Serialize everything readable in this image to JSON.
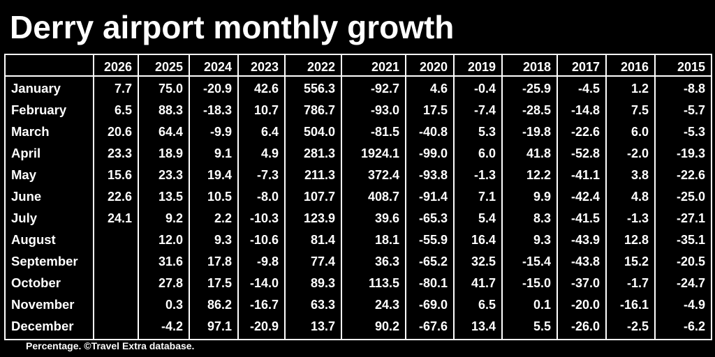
{
  "title": "Derry airport monthly growth",
  "footnote": "Percentage. ©Travel Extra database.",
  "colors": {
    "background": "#000000",
    "text": "#ffffff",
    "grid": "#ffffff"
  },
  "chart_data": {
    "type": "table",
    "title": "Derry airport monthly growth",
    "columns": [
      "2026",
      "2025",
      "2024",
      "2023",
      "2022",
      "2021",
      "2020",
      "2019",
      "2018",
      "2017",
      "2016",
      "2015"
    ],
    "rows": [
      {
        "label": "January",
        "values": [
          "7.7",
          "75.0",
          "-20.9",
          "42.6",
          "556.3",
          "-92.7",
          "4.6",
          "-0.4",
          "-25.9",
          "-4.5",
          "1.2",
          "-8.8"
        ]
      },
      {
        "label": "February",
        "values": [
          "6.5",
          "88.3",
          "-18.3",
          "10.7",
          "786.7",
          "-93.0",
          "17.5",
          "-7.4",
          "-28.5",
          "-14.8",
          "7.5",
          "-5.7"
        ]
      },
      {
        "label": "March",
        "values": [
          "20.6",
          "64.4",
          "-9.9",
          "6.4",
          "504.0",
          "-81.5",
          "-40.8",
          "5.3",
          "-19.8",
          "-22.6",
          "6.0",
          "-5.3"
        ]
      },
      {
        "label": "April",
        "values": [
          "23.3",
          "18.9",
          "9.1",
          "4.9",
          "281.3",
          "1924.1",
          "-99.0",
          "6.0",
          "41.8",
          "-52.8",
          "-2.0",
          "-19.3"
        ]
      },
      {
        "label": "May",
        "values": [
          "15.6",
          "23.3",
          "19.4",
          "-7.3",
          "211.3",
          "372.4",
          "-93.8",
          "-1.3",
          "12.2",
          "-41.1",
          "3.8",
          "-22.6"
        ]
      },
      {
        "label": "June",
        "values": [
          "22.6",
          "13.5",
          "10.5",
          "-8.0",
          "107.7",
          "408.7",
          "-91.4",
          "7.1",
          "9.9",
          "-42.4",
          "4.8",
          "-25.0"
        ]
      },
      {
        "label": "July",
        "values": [
          "24.1",
          "9.2",
          "2.2",
          "-10.3",
          "123.9",
          "39.6",
          "-65.3",
          "5.4",
          "8.3",
          "-41.5",
          "-1.3",
          "-27.1"
        ]
      },
      {
        "label": "August",
        "values": [
          "",
          "12.0",
          "9.3",
          "-10.6",
          "81.4",
          "18.1",
          "-55.9",
          "16.4",
          "9.3",
          "-43.9",
          "12.8",
          "-35.1"
        ]
      },
      {
        "label": "September",
        "values": [
          "",
          "31.6",
          "17.8",
          "-9.8",
          "77.4",
          "36.3",
          "-65.2",
          "32.5",
          "-15.4",
          "-43.8",
          "15.2",
          "-20.5"
        ]
      },
      {
        "label": "October",
        "values": [
          "",
          "27.8",
          "17.5",
          "-14.0",
          "89.3",
          "113.5",
          "-80.1",
          "41.7",
          "-15.0",
          "-37.0",
          "-1.7",
          "-24.7"
        ]
      },
      {
        "label": "November",
        "values": [
          "",
          "0.3",
          "86.2",
          "-16.7",
          "63.3",
          "24.3",
          "-69.0",
          "6.5",
          "0.1",
          "-20.0",
          "-16.1",
          "-4.9"
        ]
      },
      {
        "label": "December",
        "values": [
          "",
          "-4.2",
          "97.1",
          "-20.9",
          "13.7",
          "90.2",
          "-67.6",
          "13.4",
          "5.5",
          "-26.0",
          "-2.5",
          "-6.2"
        ]
      }
    ]
  }
}
